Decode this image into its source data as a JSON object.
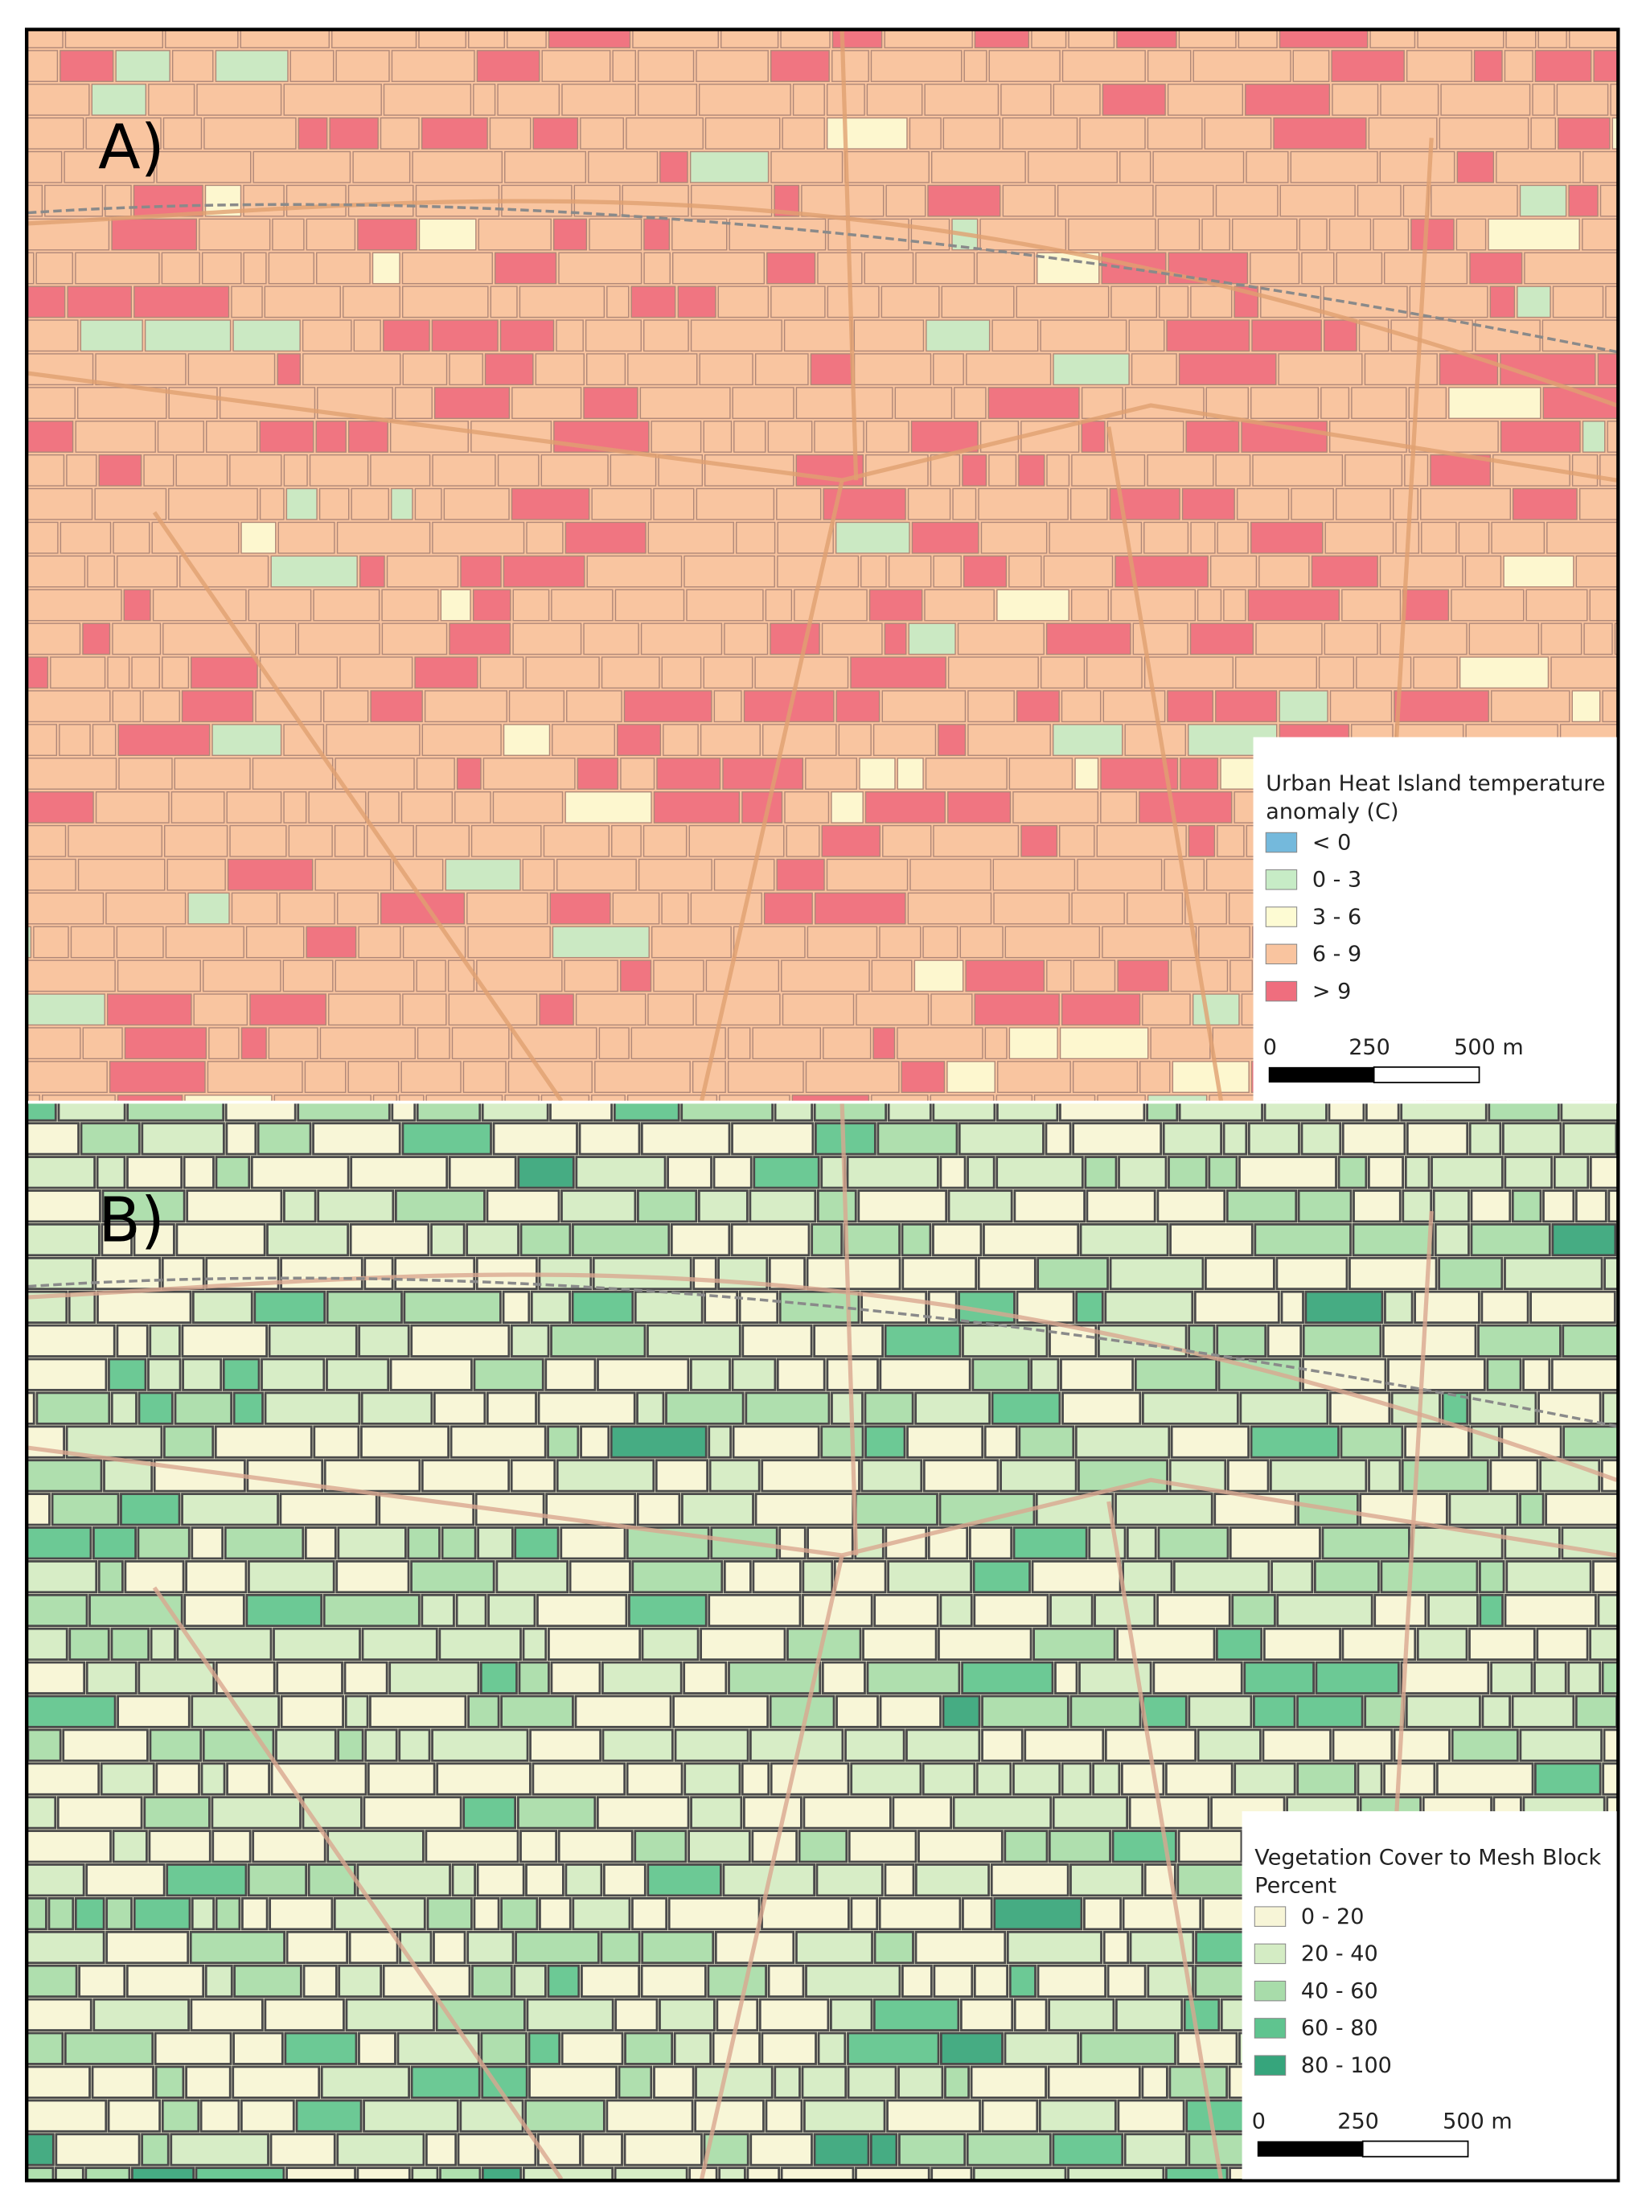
{
  "panels": [
    {
      "label": "A)",
      "legend": {
        "title_lines": [
          "Urban Heat Island temperature",
          "anomaly (C)"
        ],
        "items": [
          {
            "label": "< 0",
            "color": "#74b9dc"
          },
          {
            "label": "0 - 3",
            "color": "#c7ecc6"
          },
          {
            "label": "3 - 6",
            "color": "#fdfbd3"
          },
          {
            "label": "6 - 9",
            "color": "#f9c49f"
          },
          {
            "label": "> 9",
            "color": "#ef6e7e"
          }
        ]
      },
      "scale_bar": {
        "labels": [
          "0",
          "250",
          "500 m"
        ]
      }
    },
    {
      "label": "B)",
      "legend": {
        "title_lines": [
          "Vegetation Cover to Mesh Block",
          "Percent"
        ],
        "items": [
          {
            "label": "0 - 20",
            "color": "#f7f5d7"
          },
          {
            "label": "20 - 40",
            "color": "#d4ecc4"
          },
          {
            "label": "40 - 60",
            "color": "#a8dcaa"
          },
          {
            "label": "60 - 80",
            "color": "#5fc48f"
          },
          {
            "label": "80 - 100",
            "color": "#36a57c"
          }
        ]
      },
      "scale_bar": {
        "labels": [
          "0",
          "250",
          "500 m"
        ]
      }
    }
  ]
}
